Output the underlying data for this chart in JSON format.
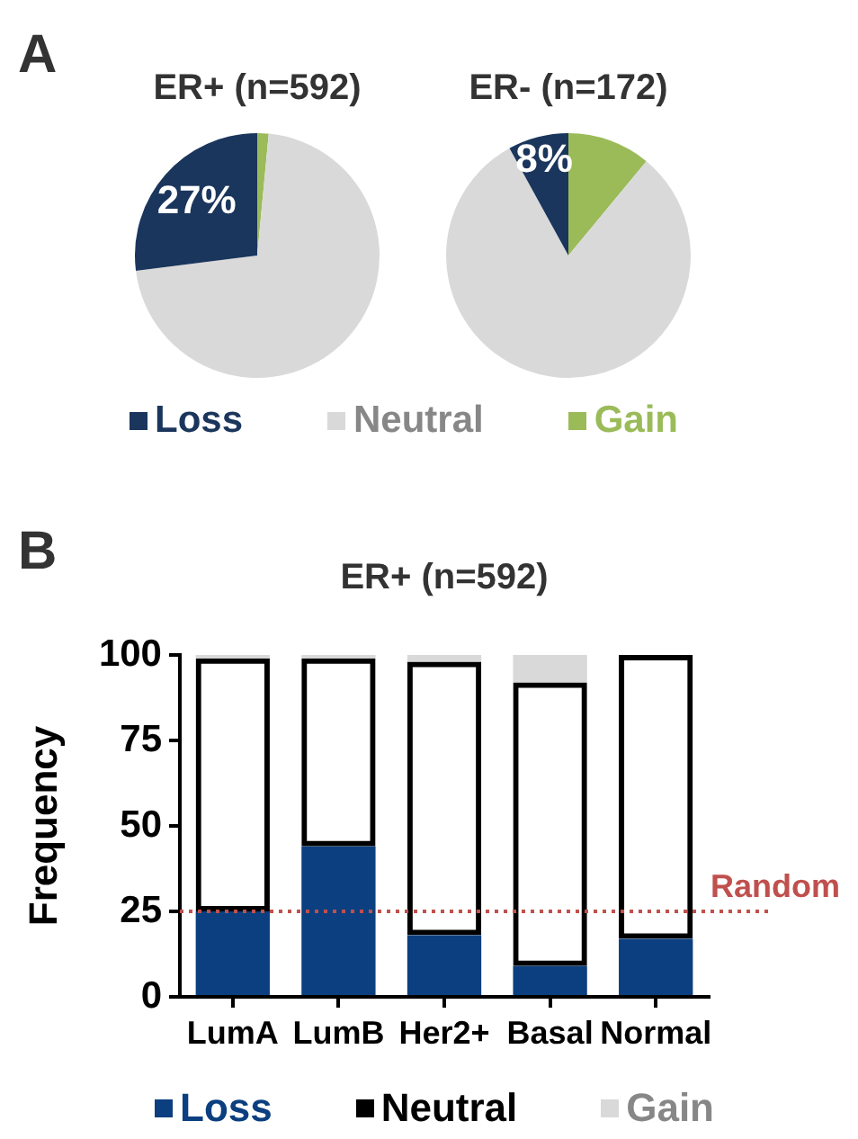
{
  "chart_data": [
    {
      "type": "pie",
      "title": "ER+ (n=592)",
      "annotations": [
        "A"
      ],
      "categories": [
        "Loss",
        "Neutral",
        "Gain"
      ],
      "values": [
        27,
        71.5,
        1.5
      ],
      "colors": [
        "#1b365d",
        "#d9d9d9",
        "#9bbb59"
      ],
      "value_labels": [
        "27%",
        null,
        null
      ],
      "legend": "bottom"
    },
    {
      "type": "pie",
      "title": "ER- (n=172)",
      "categories": [
        null,
        null,
        null
      ],
      "values": [
        8,
        81,
        11
      ],
      "colors": [
        "#1b365d",
        "#d9d9d9",
        "#9bbb59"
      ],
      "value_labels": [
        "8%",
        null,
        null
      ]
    },
    {
      "type": "bar",
      "title": "ER+ (n=592)",
      "annotations": [
        "B"
      ],
      "ylabel": "Frequency",
      "stacked": true,
      "categories": [
        "LumA",
        "LumB",
        "Her2+",
        "Basal",
        "Normal"
      ],
      "series": [
        {
          "name": "Loss",
          "color": "#0b3f7f",
          "values": [
            25,
            44,
            18,
            9,
            17
          ]
        },
        {
          "name": "Neutral",
          "color": "#000000",
          "values": [
            74,
            55,
            80,
            83,
            83
          ]
        },
        {
          "name": "Gain",
          "color": "#d9d9d9",
          "values": [
            1,
            1,
            2,
            8,
            0
          ]
        }
      ],
      "ylim": [
        0,
        100
      ],
      "yticks": [
        0,
        25,
        50,
        75,
        100
      ],
      "grid": false,
      "legend": "bottom",
      "ref_lines": [
        {
          "axis": "y",
          "value": 25,
          "label": "Random",
          "color": "#c0504d",
          "line_style": "dotted"
        }
      ]
    }
  ]
}
